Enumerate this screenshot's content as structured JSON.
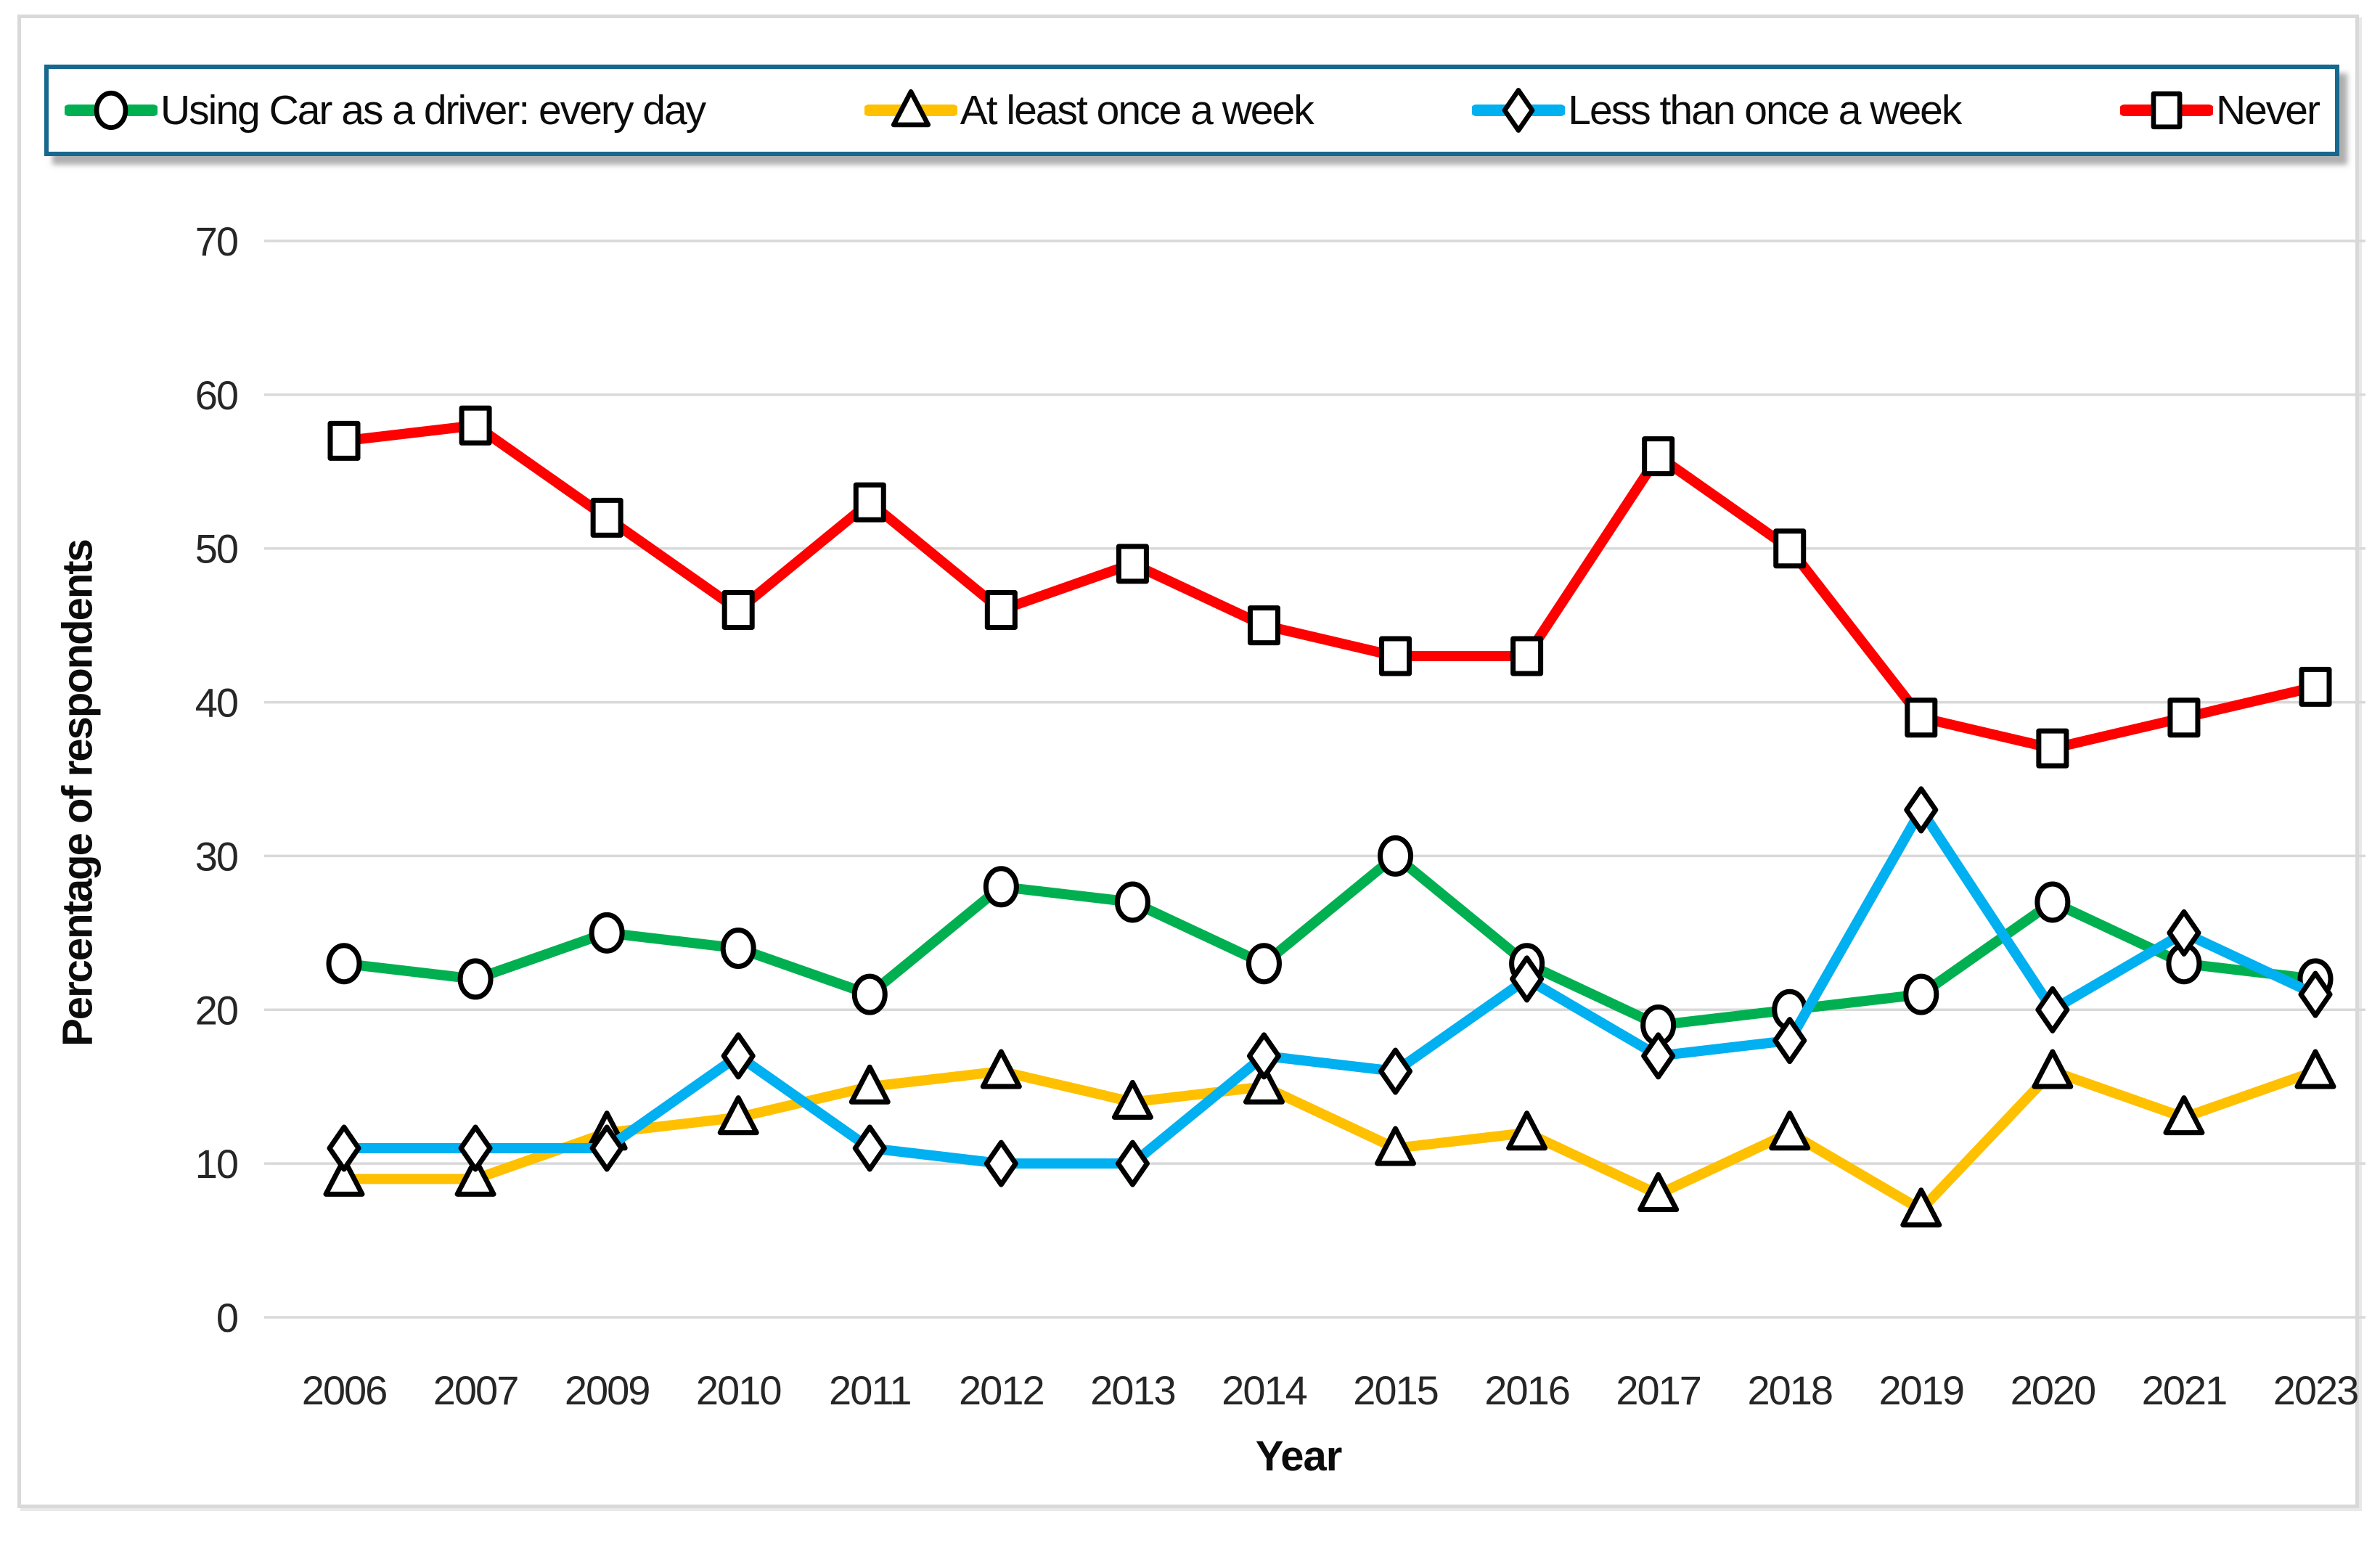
{
  "page": {
    "background": "#ffffff"
  },
  "card": {
    "background": "#ffffff",
    "border_color": "#d9d9d9"
  },
  "legend": {
    "border_color": "#16688e",
    "background": "#ffffff",
    "items": [
      {
        "label": "Using Car as a driver: every day",
        "color": "#00b050",
        "marker": "circle"
      },
      {
        "label": "At least once a week",
        "color": "#ffc000",
        "marker": "triangle"
      },
      {
        "label": "Less than once a week",
        "color": "#00b0f0",
        "marker": "diamond"
      },
      {
        "label": "Never",
        "color": "#ff0000",
        "marker": "square"
      }
    ]
  },
  "chart_data": {
    "type": "line",
    "title": "",
    "xlabel": "Year",
    "ylabel": "Percentage of respondents",
    "categories": [
      "2006",
      "2007",
      "2009",
      "2010",
      "2011",
      "2012",
      "2013",
      "2014",
      "2015",
      "2016",
      "2017",
      "2018",
      "2019",
      "2020",
      "2021",
      "2023"
    ],
    "series": [
      {
        "name": "Using Car as a driver: every day",
        "marker": "circle",
        "color": "#00b050",
        "values": [
          23,
          22,
          25,
          24,
          21,
          28,
          27,
          23,
          30,
          23,
          19,
          20,
          21,
          27,
          23,
          22
        ]
      },
      {
        "name": "At least once a week",
        "marker": "triangle",
        "color": "#ffc000",
        "values": [
          9,
          9,
          12,
          13,
          15,
          16,
          14,
          15,
          11,
          12,
          8,
          12,
          7,
          16,
          13,
          16
        ]
      },
      {
        "name": "Less than once a week",
        "marker": "diamond",
        "color": "#00b0f0",
        "values": [
          11,
          11,
          11,
          17,
          11,
          10,
          10,
          17,
          16,
          22,
          17,
          18,
          33,
          20,
          25,
          21
        ]
      },
      {
        "name": "Never",
        "marker": "square",
        "color": "#ff0000",
        "values": [
          57,
          58,
          52,
          46,
          53,
          46,
          49,
          45,
          43,
          43,
          56,
          50,
          39,
          37,
          39,
          41
        ]
      }
    ],
    "ylim": [
      0,
      70
    ],
    "ytick_step": 10,
    "grid": true,
    "gridline_color": "#d9d9d9",
    "tick_label_color": "#262626",
    "legend_position": "top"
  }
}
